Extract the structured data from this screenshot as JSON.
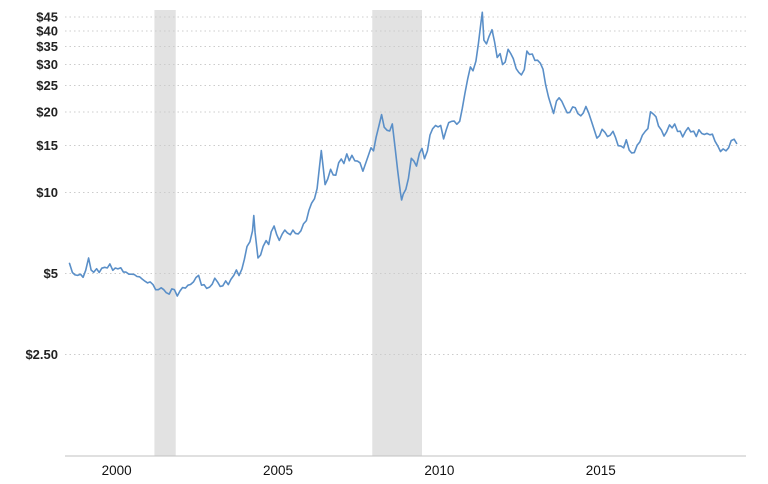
{
  "page": {
    "background": "#ffffff"
  },
  "chart_data": {
    "type": "line",
    "title": "",
    "xlabel": "",
    "ylabel": "",
    "x_scale": "linear",
    "y_scale": "log",
    "xlim": [
      1998.4,
      2019.5
    ],
    "ylim": [
      1.05,
      47.8
    ],
    "grid": "horizontal-dotted",
    "legend": "none",
    "colors": {
      "line": "#5a8fc8",
      "recession_band": "#e2e2e2",
      "grid": "#cccccc",
      "axis": "#c2c2c2",
      "y_tick_label": "#222222",
      "x_tick_label": "#111111",
      "background": "#ffffff"
    },
    "y_ticks": [
      {
        "value": 45,
        "label": "$45"
      },
      {
        "value": 40,
        "label": "$40"
      },
      {
        "value": 35,
        "label": "$35"
      },
      {
        "value": 30,
        "label": "$30"
      },
      {
        "value": 25,
        "label": "$25"
      },
      {
        "value": 20,
        "label": "$20"
      },
      {
        "value": 15,
        "label": "$15"
      },
      {
        "value": 10,
        "label": "$10"
      },
      {
        "value": 5,
        "label": "$5"
      },
      {
        "value": 2.5,
        "label": "$2.50"
      }
    ],
    "x_ticks": [
      {
        "value": 2000,
        "label": "2000"
      },
      {
        "value": 2005,
        "label": "2005"
      },
      {
        "value": 2010,
        "label": "2010"
      },
      {
        "value": 2015,
        "label": "2015"
      }
    ],
    "recession_bands": [
      [
        2001.17,
        2001.83
      ],
      [
        2007.92,
        2009.46
      ]
    ],
    "series": [
      {
        "name": "price",
        "points": [
          [
            1998.54,
            5.46
          ],
          [
            1998.63,
            5.05
          ],
          [
            1998.71,
            4.95
          ],
          [
            1998.79,
            4.93
          ],
          [
            1998.88,
            4.98
          ],
          [
            1998.96,
            4.85
          ],
          [
            1999.04,
            5.15
          ],
          [
            1999.13,
            5.72
          ],
          [
            1999.21,
            5.16
          ],
          [
            1999.29,
            5.06
          ],
          [
            1999.38,
            5.22
          ],
          [
            1999.46,
            5.05
          ],
          [
            1999.54,
            5.24
          ],
          [
            1999.63,
            5.28
          ],
          [
            1999.71,
            5.25
          ],
          [
            1999.79,
            5.44
          ],
          [
            1999.88,
            5.15
          ],
          [
            1999.96,
            5.25
          ],
          [
            2000.04,
            5.21
          ],
          [
            2000.13,
            5.26
          ],
          [
            2000.21,
            5.07
          ],
          [
            2000.29,
            5.07
          ],
          [
            2000.38,
            4.98
          ],
          [
            2000.46,
            4.98
          ],
          [
            2000.54,
            4.97
          ],
          [
            2000.63,
            4.88
          ],
          [
            2000.71,
            4.87
          ],
          [
            2000.79,
            4.78
          ],
          [
            2000.88,
            4.69
          ],
          [
            2000.96,
            4.62
          ],
          [
            2001.04,
            4.66
          ],
          [
            2001.13,
            4.55
          ],
          [
            2001.21,
            4.36
          ],
          [
            2001.29,
            4.36
          ],
          [
            2001.38,
            4.43
          ],
          [
            2001.46,
            4.36
          ],
          [
            2001.54,
            4.25
          ],
          [
            2001.63,
            4.2
          ],
          [
            2001.71,
            4.39
          ],
          [
            2001.79,
            4.36
          ],
          [
            2001.88,
            4.13
          ],
          [
            2001.96,
            4.31
          ],
          [
            2002.04,
            4.44
          ],
          [
            2002.13,
            4.42
          ],
          [
            2002.21,
            4.53
          ],
          [
            2002.29,
            4.56
          ],
          [
            2002.38,
            4.66
          ],
          [
            2002.46,
            4.84
          ],
          [
            2002.54,
            4.93
          ],
          [
            2002.63,
            4.53
          ],
          [
            2002.71,
            4.55
          ],
          [
            2002.79,
            4.41
          ],
          [
            2002.88,
            4.46
          ],
          [
            2002.96,
            4.57
          ],
          [
            2003.04,
            4.81
          ],
          [
            2003.13,
            4.65
          ],
          [
            2003.21,
            4.48
          ],
          [
            2003.29,
            4.51
          ],
          [
            2003.38,
            4.7
          ],
          [
            2003.46,
            4.55
          ],
          [
            2003.54,
            4.76
          ],
          [
            2003.63,
            4.93
          ],
          [
            2003.71,
            5.16
          ],
          [
            2003.79,
            4.92
          ],
          [
            2003.88,
            5.2
          ],
          [
            2003.96,
            5.66
          ],
          [
            2004.04,
            6.31
          ],
          [
            2004.13,
            6.57
          ],
          [
            2004.21,
            7.21
          ],
          [
            2004.25,
            8.22
          ],
          [
            2004.29,
            7.1
          ],
          [
            2004.38,
            5.72
          ],
          [
            2004.46,
            5.87
          ],
          [
            2004.54,
            6.33
          ],
          [
            2004.63,
            6.64
          ],
          [
            2004.71,
            6.42
          ],
          [
            2004.79,
            7.16
          ],
          [
            2004.88,
            7.52
          ],
          [
            2004.96,
            6.99
          ],
          [
            2005.04,
            6.65
          ],
          [
            2005.13,
            7.02
          ],
          [
            2005.21,
            7.26
          ],
          [
            2005.29,
            7.09
          ],
          [
            2005.38,
            6.98
          ],
          [
            2005.46,
            7.26
          ],
          [
            2005.54,
            7.06
          ],
          [
            2005.63,
            7.03
          ],
          [
            2005.71,
            7.22
          ],
          [
            2005.79,
            7.66
          ],
          [
            2005.88,
            7.88
          ],
          [
            2005.96,
            8.62
          ],
          [
            2006.04,
            9.14
          ],
          [
            2006.13,
            9.5
          ],
          [
            2006.21,
            10.36
          ],
          [
            2006.29,
            12.61
          ],
          [
            2006.34,
            14.35
          ],
          [
            2006.38,
            13.0
          ],
          [
            2006.46,
            10.72
          ],
          [
            2006.54,
            11.24
          ],
          [
            2006.63,
            12.22
          ],
          [
            2006.71,
            11.65
          ],
          [
            2006.79,
            11.62
          ],
          [
            2006.88,
            12.93
          ],
          [
            2006.96,
            13.35
          ],
          [
            2007.04,
            12.84
          ],
          [
            2007.13,
            13.94
          ],
          [
            2007.21,
            13.15
          ],
          [
            2007.29,
            13.78
          ],
          [
            2007.38,
            13.15
          ],
          [
            2007.46,
            13.11
          ],
          [
            2007.54,
            12.92
          ],
          [
            2007.63,
            12.02
          ],
          [
            2007.71,
            12.82
          ],
          [
            2007.79,
            13.67
          ],
          [
            2007.88,
            14.69
          ],
          [
            2007.96,
            14.31
          ],
          [
            2008.04,
            16.08
          ],
          [
            2008.13,
            17.79
          ],
          [
            2008.21,
            19.53
          ],
          [
            2008.29,
            17.52
          ],
          [
            2008.38,
            17.06
          ],
          [
            2008.46,
            16.97
          ],
          [
            2008.54,
            18.03
          ],
          [
            2008.63,
            14.58
          ],
          [
            2008.71,
            11.98
          ],
          [
            2008.79,
            10.1
          ],
          [
            2008.83,
            9.4
          ],
          [
            2008.88,
            9.87
          ],
          [
            2008.96,
            10.29
          ],
          [
            2009.04,
            11.29
          ],
          [
            2009.13,
            13.43
          ],
          [
            2009.21,
            13.11
          ],
          [
            2009.29,
            12.56
          ],
          [
            2009.38,
            14.01
          ],
          [
            2009.46,
            14.62
          ],
          [
            2009.54,
            13.38
          ],
          [
            2009.63,
            14.29
          ],
          [
            2009.71,
            16.4
          ],
          [
            2009.79,
            17.28
          ],
          [
            2009.88,
            17.78
          ],
          [
            2009.96,
            17.57
          ],
          [
            2010.04,
            17.78
          ],
          [
            2010.13,
            15.86
          ],
          [
            2010.21,
            17.11
          ],
          [
            2010.29,
            18.23
          ],
          [
            2010.38,
            18.44
          ],
          [
            2010.46,
            18.46
          ],
          [
            2010.54,
            17.97
          ],
          [
            2010.63,
            18.44
          ],
          [
            2010.71,
            20.61
          ],
          [
            2010.79,
            23.39
          ],
          [
            2010.88,
            26.61
          ],
          [
            2010.96,
            29.36
          ],
          [
            2011.04,
            28.41
          ],
          [
            2011.13,
            30.84
          ],
          [
            2011.21,
            35.84
          ],
          [
            2011.29,
            43.05
          ],
          [
            2011.33,
            46.86
          ],
          [
            2011.38,
            36.91
          ],
          [
            2011.46,
            35.75
          ],
          [
            2011.54,
            38.15
          ],
          [
            2011.63,
            40.38
          ],
          [
            2011.71,
            36.34
          ],
          [
            2011.79,
            31.83
          ],
          [
            2011.88,
            32.9
          ],
          [
            2011.96,
            29.94
          ],
          [
            2012.04,
            30.61
          ],
          [
            2012.13,
            34.14
          ],
          [
            2012.21,
            32.94
          ],
          [
            2012.29,
            31.54
          ],
          [
            2012.38,
            28.91
          ],
          [
            2012.46,
            28.02
          ],
          [
            2012.54,
            27.42
          ],
          [
            2012.63,
            28.7
          ],
          [
            2012.71,
            33.61
          ],
          [
            2012.79,
            32.65
          ],
          [
            2012.88,
            32.81
          ],
          [
            2012.96,
            31.06
          ],
          [
            2013.04,
            31.11
          ],
          [
            2013.13,
            30.28
          ],
          [
            2013.21,
            28.79
          ],
          [
            2013.29,
            25.23
          ],
          [
            2013.38,
            22.7
          ],
          [
            2013.46,
            21.11
          ],
          [
            2013.54,
            19.71
          ],
          [
            2013.63,
            21.93
          ],
          [
            2013.71,
            22.55
          ],
          [
            2013.79,
            21.91
          ],
          [
            2013.88,
            20.76
          ],
          [
            2013.96,
            19.82
          ],
          [
            2014.04,
            19.89
          ],
          [
            2014.13,
            20.85
          ],
          [
            2014.21,
            20.7
          ],
          [
            2014.29,
            19.7
          ],
          [
            2014.38,
            19.31
          ],
          [
            2014.46,
            19.79
          ],
          [
            2014.54,
            20.92
          ],
          [
            2014.63,
            19.75
          ],
          [
            2014.71,
            18.46
          ],
          [
            2014.79,
            17.25
          ],
          [
            2014.88,
            15.97
          ],
          [
            2014.96,
            16.3
          ],
          [
            2015.04,
            17.21
          ],
          [
            2015.13,
            16.76
          ],
          [
            2015.21,
            16.18
          ],
          [
            2015.29,
            16.35
          ],
          [
            2015.38,
            16.92
          ],
          [
            2015.46,
            16.02
          ],
          [
            2015.54,
            14.96
          ],
          [
            2015.63,
            14.91
          ],
          [
            2015.71,
            14.68
          ],
          [
            2015.79,
            15.73
          ],
          [
            2015.88,
            14.41
          ],
          [
            2015.96,
            14.05
          ],
          [
            2016.04,
            14.1
          ],
          [
            2016.13,
            15.03
          ],
          [
            2016.21,
            15.44
          ],
          [
            2016.29,
            16.37
          ],
          [
            2016.38,
            16.92
          ],
          [
            2016.46,
            17.31
          ],
          [
            2016.54,
            19.99
          ],
          [
            2016.63,
            19.61
          ],
          [
            2016.71,
            19.16
          ],
          [
            2016.79,
            17.71
          ],
          [
            2016.88,
            17.09
          ],
          [
            2016.96,
            16.24
          ],
          [
            2017.04,
            16.85
          ],
          [
            2017.13,
            17.88
          ],
          [
            2017.21,
            17.42
          ],
          [
            2017.29,
            18.01
          ],
          [
            2017.38,
            16.89
          ],
          [
            2017.46,
            16.94
          ],
          [
            2017.54,
            16.13
          ],
          [
            2017.63,
            16.94
          ],
          [
            2017.71,
            17.46
          ],
          [
            2017.79,
            16.84
          ],
          [
            2017.88,
            16.94
          ],
          [
            2017.96,
            16.18
          ],
          [
            2018.04,
            17.14
          ],
          [
            2018.13,
            16.61
          ],
          [
            2018.21,
            16.46
          ],
          [
            2018.29,
            16.62
          ],
          [
            2018.38,
            16.42
          ],
          [
            2018.46,
            16.51
          ],
          [
            2018.54,
            15.55
          ],
          [
            2018.63,
            14.9
          ],
          [
            2018.71,
            14.24
          ],
          [
            2018.79,
            14.55
          ],
          [
            2018.88,
            14.31
          ],
          [
            2018.96,
            14.69
          ],
          [
            2019.04,
            15.63
          ],
          [
            2019.13,
            15.81
          ],
          [
            2019.21,
            15.25
          ]
        ]
      }
    ]
  }
}
